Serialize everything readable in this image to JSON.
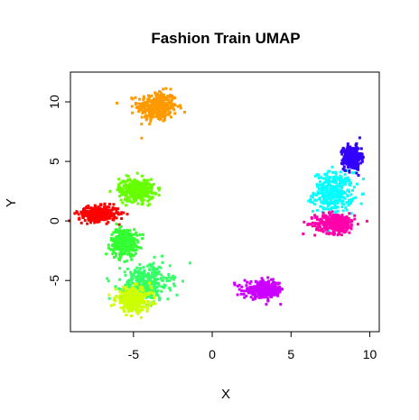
{
  "chart_data": {
    "type": "scatter",
    "title": "Fashion Train UMAP",
    "xlabel": "X",
    "ylabel": "Y",
    "xlim": [
      -9,
      10.6
    ],
    "ylim": [
      -9.3,
      12.5
    ],
    "xticks": [
      -5,
      0,
      5,
      10
    ],
    "yticks": [
      -5,
      0,
      5,
      10
    ],
    "grid": false,
    "legend": "none",
    "clusters": [
      {
        "color": "#ff9900",
        "center": [
          -3.5,
          9.6
        ],
        "spread": [
          0.9,
          0.9
        ]
      },
      {
        "color": "#00ffff",
        "center": [
          7.7,
          2.4
        ],
        "spread": [
          0.9,
          1.2
        ]
      },
      {
        "color": "#3300ff",
        "center": [
          8.9,
          5.3
        ],
        "spread": [
          0.4,
          0.7
        ]
      },
      {
        "color": "#ff00aa",
        "center": [
          7.8,
          -0.2
        ],
        "spread": [
          0.9,
          0.6
        ]
      },
      {
        "color": "#ff0000",
        "center": [
          -7.2,
          0.6
        ],
        "spread": [
          0.9,
          0.45
        ]
      },
      {
        "color": "#66ff00",
        "center": [
          -4.8,
          2.6
        ],
        "spread": [
          0.8,
          0.7
        ]
      },
      {
        "color": "#33ff33",
        "center": [
          -5.6,
          -1.8
        ],
        "spread": [
          0.6,
          0.8
        ]
      },
      {
        "color": "#33ff66",
        "center": [
          -4.2,
          -5.2
        ],
        "spread": [
          1.1,
          1.1
        ]
      },
      {
        "color": "#ccff00",
        "center": [
          -5.0,
          -6.6
        ],
        "spread": [
          0.8,
          0.7
        ]
      },
      {
        "color": "#cc00ff",
        "center": [
          3.3,
          -5.8
        ],
        "spread": [
          0.9,
          0.5
        ]
      }
    ]
  }
}
